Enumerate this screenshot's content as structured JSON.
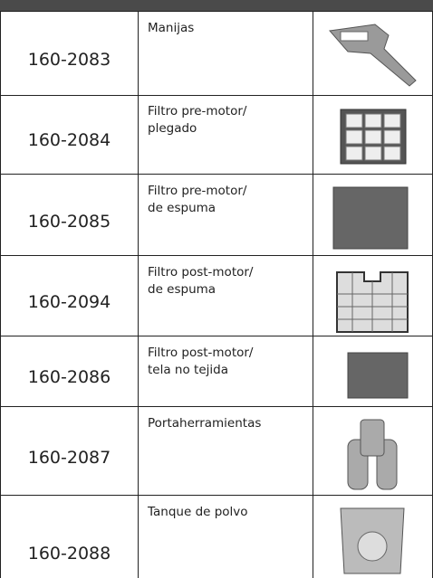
{
  "table": {
    "rows": [
      {
        "part": "160-2083",
        "description": [
          "Manijas"
        ]
      },
      {
        "part": "160-2084",
        "description": [
          "Filtro pre-motor/",
          "plegado"
        ]
      },
      {
        "part": "160-2085",
        "description": [
          "Filtro pre-motor/",
          "de espuma"
        ]
      },
      {
        "part": "160-2094",
        "description": [
          "Filtro post-motor/",
          "de espuma"
        ]
      },
      {
        "part": "160-2086",
        "description": [
          "Filtro post-motor/",
          "tela no tejida"
        ]
      },
      {
        "part": "160-2087",
        "description": [
          "Portaherramientas"
        ]
      },
      {
        "part": "160-2088",
        "description": [
          "Tanque de polvo"
        ]
      }
    ]
  }
}
